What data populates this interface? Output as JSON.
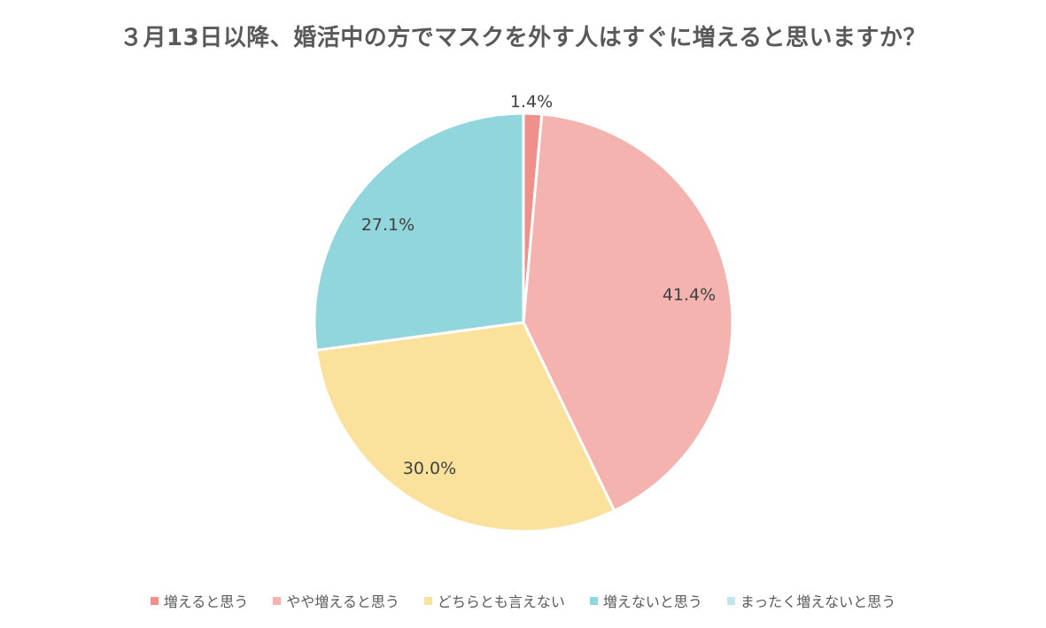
{
  "chart_data": {
    "type": "pie",
    "title": "３月13日以降、婚活中の方でマスクを外す人はすぐに増えると思いますか？",
    "categories": [
      "増えると思う",
      "やや増えると思う",
      "どちらとも言えない",
      "増えないと思う",
      "まったく増えないと思う"
    ],
    "values": [
      1.4,
      41.4,
      30.0,
      27.1,
      0.0
    ],
    "labels": [
      "1.4%",
      "41.4%",
      "30.0%",
      "27.1%",
      ""
    ],
    "colors": [
      "#F0908A",
      "#F5B3AF",
      "#FAE29C",
      "#92D6DD",
      "#BFE6EC"
    ],
    "start_angle": "12 o'clock",
    "direction": "clockwise",
    "legend_position": "bottom"
  },
  "title": "３月13日以降、婚活中の方でマスクを外す人はすぐに増えると思いますか？",
  "legend": [
    {
      "label": "増えると思う",
      "color": "#F0908A"
    },
    {
      "label": "やや増えると思う",
      "color": "#F5B3AF"
    },
    {
      "label": "どちらとも言えない",
      "color": "#FAE29C"
    },
    {
      "label": "増えないと思う",
      "color": "#92D6DD"
    },
    {
      "label": "まったく増えないと思う",
      "color": "#BFE6EC"
    }
  ],
  "data_labels": {
    "slice0": "1.4%",
    "slice1": "41.4%",
    "slice2": "30.0%",
    "slice3": "27.1%"
  }
}
